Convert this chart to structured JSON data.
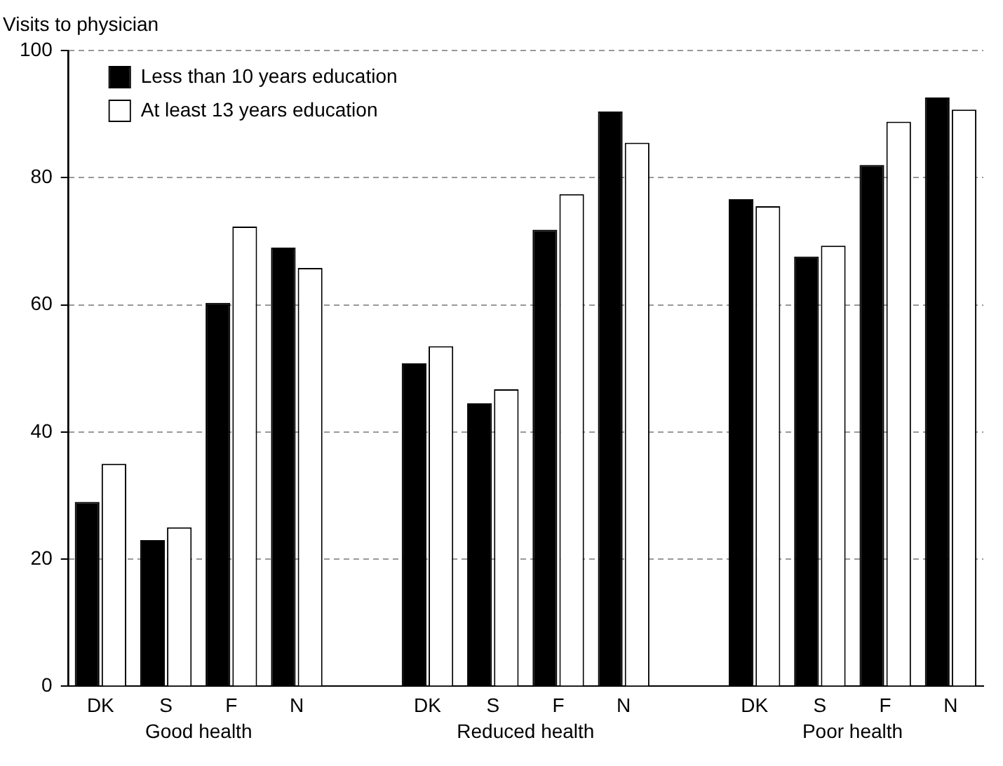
{
  "chart_data": {
    "type": "bar",
    "ylabel": "Visits to physician",
    "categories": [
      "DK",
      "S",
      "F",
      "N",
      null,
      "DK",
      "S",
      "F",
      "N",
      null,
      "DK",
      "S",
      "F",
      "N"
    ],
    "series": [
      {
        "name": "Less than 10 years education",
        "color": "#000000",
        "values": [
          29,
          23,
          60.3,
          69,
          null,
          50.8,
          44.5,
          71.8,
          90.4,
          null,
          76.6,
          67.6,
          82,
          92.6
        ]
      },
      {
        "name": "At least 13 years education",
        "color": "#ffffff",
        "values": [
          35,
          25,
          72.3,
          65.8,
          null,
          53.5,
          46.7,
          77.4,
          85.5,
          null,
          75.5,
          69.3,
          88.8,
          90.7
        ]
      }
    ],
    "annotations": [
      "Good health",
      "Reduced health",
      "Poor health"
    ],
    "ylim": [
      0,
      100
    ],
    "yticks": [
      0,
      20,
      40,
      60,
      80,
      100
    ],
    "grid": "y",
    "legend": "top left"
  }
}
